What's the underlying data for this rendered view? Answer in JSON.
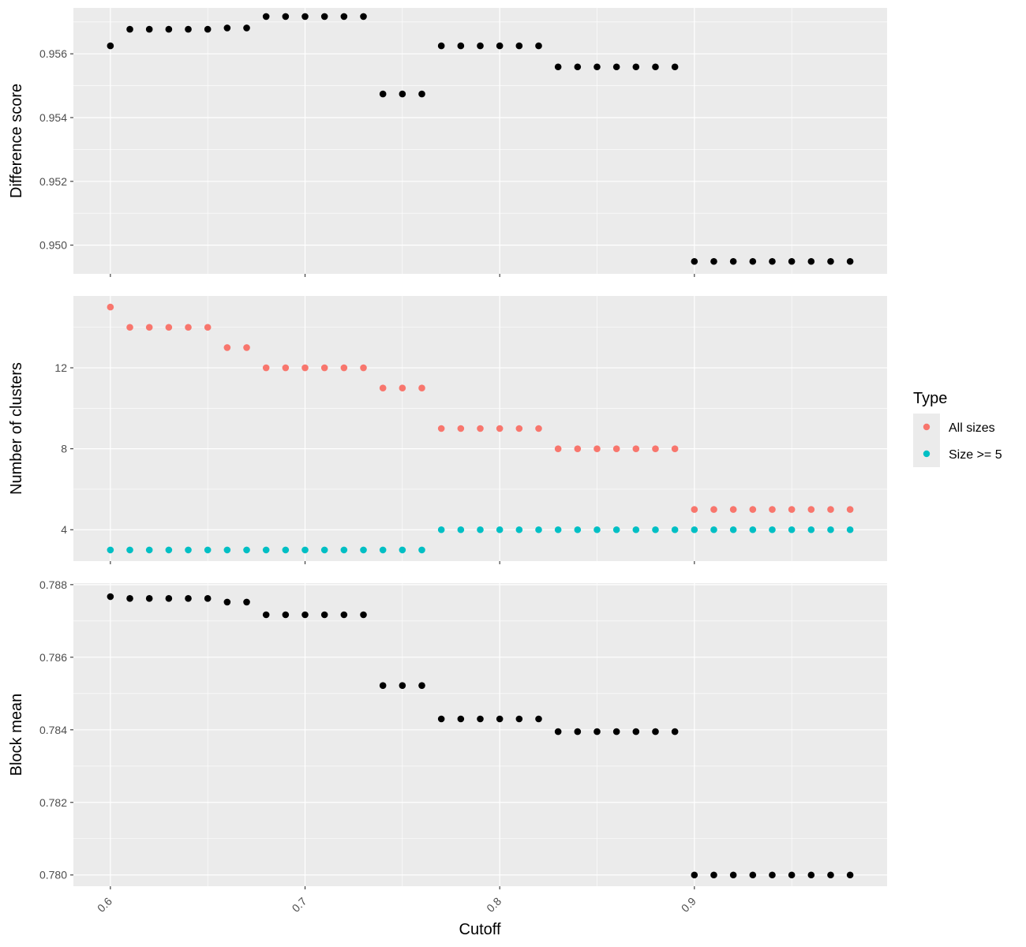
{
  "chart_data": {
    "type": "scatter",
    "xlabel": "Cutoff",
    "x_ticks": [
      "0.6",
      "0.7",
      "0.8",
      "0.9"
    ],
    "x_tick_values": [
      0.6,
      0.7,
      0.8,
      0.9
    ],
    "xlim": [
      0.581,
      0.999
    ],
    "x": [
      0.6,
      0.61,
      0.62,
      0.63,
      0.64,
      0.65,
      0.66,
      0.67,
      0.68,
      0.69,
      0.7,
      0.71,
      0.72,
      0.73,
      0.74,
      0.75,
      0.76,
      0.77,
      0.78,
      0.79,
      0.8,
      0.81,
      0.82,
      0.83,
      0.84,
      0.85,
      0.86,
      0.87,
      0.88,
      0.89,
      0.9,
      0.91,
      0.92,
      0.93,
      0.94,
      0.95,
      0.96,
      0.97,
      0.98
    ],
    "grid": true,
    "colors": {
      "panel_bg": "#ebebeb",
      "grid_major": "#ffffff",
      "single_series": "#000000",
      "all_sizes": "#f8766d",
      "size_ge_5": "#00bfc4"
    },
    "legend": {
      "title": "Type",
      "position": "right",
      "entries": [
        "All sizes",
        "Size >= 5"
      ]
    },
    "panels": [
      {
        "ylabel": "Difference score",
        "ylim": [
          0.9491,
          0.95744
        ],
        "y_ticks": [
          "0.950",
          "0.952",
          "0.954",
          "0.956"
        ],
        "y_tick_values": [
          0.95,
          0.952,
          0.954,
          0.956
        ],
        "series": [
          {
            "color_key": "single_series",
            "values": [
              0.95625,
              0.95677,
              0.95677,
              0.95677,
              0.95677,
              0.95677,
              0.95681,
              0.95681,
              0.95717,
              0.95717,
              0.95717,
              0.95717,
              0.95717,
              0.95717,
              0.95474,
              0.95474,
              0.95474,
              0.95625,
              0.95625,
              0.95625,
              0.95625,
              0.95625,
              0.95625,
              0.95559,
              0.95559,
              0.95559,
              0.95559,
              0.95559,
              0.95559,
              0.95559,
              0.94949,
              0.94949,
              0.94949,
              0.94949,
              0.94949,
              0.94949,
              0.94949,
              0.94949,
              0.94949
            ]
          }
        ]
      },
      {
        "ylabel": "Number of clusters",
        "ylim": [
          2.45,
          15.55
        ],
        "y_ticks": [
          "4",
          "8",
          "12"
        ],
        "y_tick_values": [
          4,
          8,
          12
        ],
        "series": [
          {
            "name": "All sizes",
            "color_key": "all_sizes",
            "values": [
              15,
              14,
              14,
              14,
              14,
              14,
              13,
              13,
              12,
              12,
              12,
              12,
              12,
              12,
              11,
              11,
              11,
              9,
              9,
              9,
              9,
              9,
              9,
              8,
              8,
              8,
              8,
              8,
              8,
              8,
              5,
              5,
              5,
              5,
              5,
              5,
              5,
              5,
              5
            ]
          },
          {
            "name": "Size >= 5",
            "color_key": "size_ge_5",
            "values": [
              3,
              3,
              3,
              3,
              3,
              3,
              3,
              3,
              3,
              3,
              3,
              3,
              3,
              3,
              3,
              3,
              3,
              4,
              4,
              4,
              4,
              4,
              4,
              4,
              4,
              4,
              4,
              4,
              4,
              4,
              4,
              4,
              4,
              4,
              4,
              4,
              4,
              4,
              4
            ]
          }
        ]
      },
      {
        "ylabel": "Block mean",
        "ylim": [
          0.77969,
          0.78804
        ],
        "y_ticks": [
          "0.780",
          "0.782",
          "0.784",
          "0.786",
          "0.788"
        ],
        "y_tick_values": [
          0.78,
          0.782,
          0.784,
          0.786,
          0.788
        ],
        "series": [
          {
            "color_key": "single_series",
            "values": [
              0.78767,
              0.78762,
              0.78762,
              0.78762,
              0.78762,
              0.78762,
              0.78752,
              0.78752,
              0.78717,
              0.78717,
              0.78717,
              0.78717,
              0.78717,
              0.78717,
              0.78522,
              0.78522,
              0.78522,
              0.7843,
              0.7843,
              0.7843,
              0.7843,
              0.7843,
              0.7843,
              0.78395,
              0.78395,
              0.78395,
              0.78395,
              0.78395,
              0.78395,
              0.78395,
              0.78,
              0.78,
              0.78,
              0.78,
              0.78,
              0.78,
              0.78,
              0.78,
              0.78
            ]
          }
        ]
      }
    ]
  }
}
